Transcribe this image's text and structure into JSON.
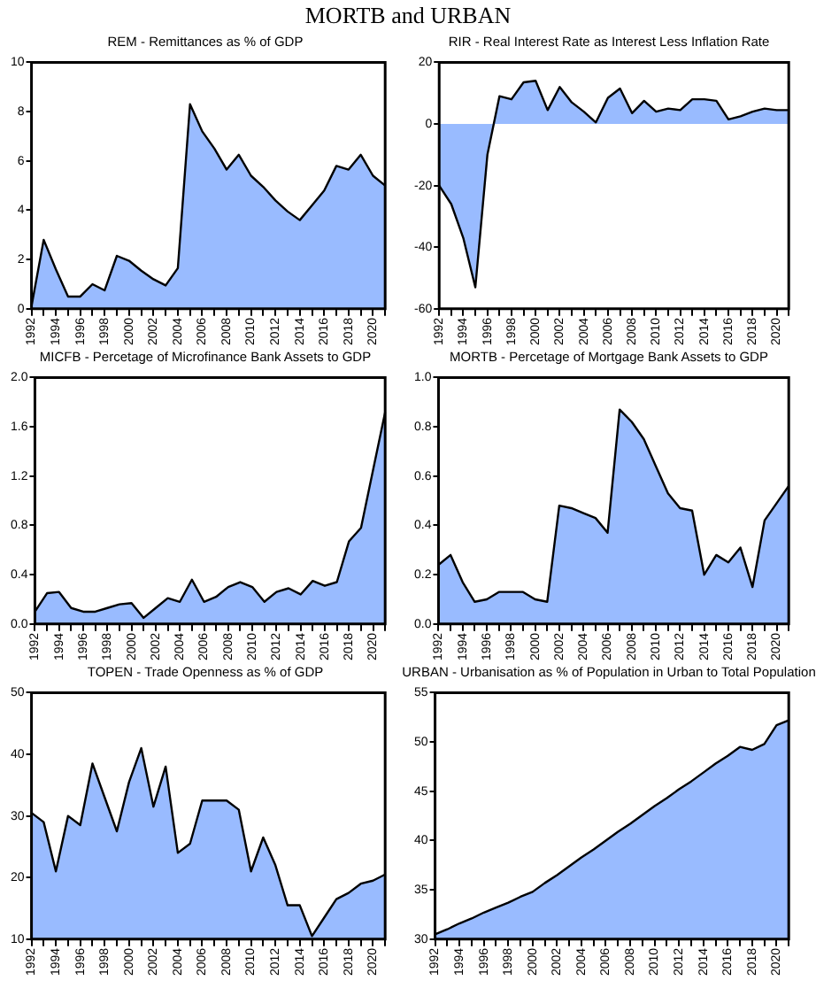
{
  "chart_data": [
    {
      "type": "area",
      "title": "REM - Remittances as % of GDP",
      "annotations": [
        "MORTB and URBAN"
      ],
      "categories": [
        "1992",
        null,
        "1994",
        null,
        "1996",
        null,
        "1998",
        null,
        "2000",
        null,
        "2002",
        null,
        "2004",
        null,
        "2006",
        null,
        "2008",
        null,
        "2010",
        null,
        "2012",
        null,
        "2014",
        null,
        "2016",
        null,
        "2018",
        null,
        "2020",
        null
      ],
      "series": [
        {
          "color": "#99bbff",
          "values": [
            0.1,
            2.8,
            1.6,
            0.5,
            0.5,
            1.0,
            0.75,
            2.15,
            1.95,
            1.55,
            1.2,
            0.95,
            1.65,
            8.3,
            7.2,
            6.5,
            5.65,
            6.25,
            5.4,
            4.95,
            4.4,
            3.95,
            3.6,
            4.2,
            4.8,
            5.8,
            5.65,
            6.25,
            5.4,
            5.0
          ]
        }
      ],
      "ylim": [
        0,
        10
      ],
      "yticks": [
        0,
        2,
        4,
        6,
        8,
        10
      ],
      "grid": false,
      "legend": false
    },
    {
      "type": "area",
      "title": "RIR - Real Interest Rate as Interest Less Inflation Rate",
      "categories": [
        "1992",
        null,
        "1994",
        null,
        "1996",
        null,
        "1998",
        null,
        "2000",
        null,
        "2002",
        null,
        "2004",
        null,
        "2006",
        null,
        "2008",
        null,
        "2010",
        null,
        "2012",
        null,
        "2014",
        null,
        "2016",
        null,
        "2018",
        null,
        "2020",
        null
      ],
      "series": [
        {
          "color": "#99bbff",
          "values": [
            -20,
            -26,
            -37,
            -53,
            -10,
            9,
            8,
            13.5,
            14,
            4.5,
            12,
            7,
            4,
            0.5,
            8.5,
            11.5,
            3.5,
            7.5,
            4,
            5,
            4.5,
            8,
            8,
            7.5,
            1.5,
            2.5,
            4,
            5,
            4.5,
            4.5
          ]
        }
      ],
      "ylim": [
        -60,
        20
      ],
      "yticks": [
        -60,
        -40,
        -20,
        0,
        20
      ],
      "grid": false,
      "legend": false
    },
    {
      "type": "area",
      "title": "MICFB - Percetage of Microfinance Bank Assets to GDP",
      "categories": [
        "1992",
        null,
        "1994",
        null,
        "1996",
        null,
        "1998",
        null,
        "2000",
        null,
        "2002",
        null,
        "2004",
        null,
        "2006",
        null,
        "2008",
        null,
        "2010",
        null,
        "2012",
        null,
        "2014",
        null,
        "2016",
        null,
        "2018",
        null,
        "2020",
        null
      ],
      "series": [
        {
          "color": "#99bbff",
          "values": [
            0.1,
            0.25,
            0.26,
            0.13,
            0.1,
            0.1,
            0.13,
            0.16,
            0.17,
            0.05,
            0.13,
            0.21,
            0.18,
            0.36,
            0.18,
            0.22,
            0.3,
            0.34,
            0.3,
            0.18,
            0.26,
            0.29,
            0.24,
            0.35,
            0.31,
            0.34,
            0.67,
            0.78,
            1.25,
            1.72
          ]
        }
      ],
      "ylim": [
        0,
        2
      ],
      "yticks": [
        {
          "value": 0,
          "label": "0.0"
        },
        0.4,
        0.8,
        1.2,
        1.6,
        {
          "value": 2,
          "label": "2.0"
        }
      ],
      "grid": false,
      "legend": false
    },
    {
      "type": "area",
      "title": "MORTB -  Percetage of Mortgage Bank Assets to GDP",
      "categories": [
        "1992",
        null,
        "1994",
        null,
        "1996",
        null,
        "1998",
        null,
        "2000",
        null,
        "2002",
        null,
        "2004",
        null,
        "2006",
        null,
        "2008",
        null,
        "2010",
        null,
        "2012",
        null,
        "2014",
        null,
        "2016",
        null,
        "2018",
        null,
        "2020",
        null
      ],
      "series": [
        {
          "color": "#99bbff",
          "values": [
            0.24,
            0.28,
            0.17,
            0.09,
            0.1,
            0.13,
            0.13,
            0.13,
            0.1,
            0.09,
            0.48,
            0.47,
            0.45,
            0.43,
            0.37,
            0.87,
            0.82,
            0.75,
            0.64,
            0.53,
            0.47,
            0.46,
            0.2,
            0.28,
            0.25,
            0.31,
            0.15,
            0.42,
            0.49,
            0.56
          ]
        }
      ],
      "ylim": [
        0,
        1
      ],
      "yticks": [
        {
          "value": 0,
          "label": "0.0"
        },
        0.2,
        0.4,
        0.6,
        0.8,
        {
          "value": 1,
          "label": "1.0"
        }
      ],
      "grid": false,
      "legend": false
    },
    {
      "type": "area",
      "title": "TOPEN - Trade Openness as % of GDP",
      "categories": [
        "1992",
        null,
        "1994",
        null,
        "1996",
        null,
        "1998",
        null,
        "2000",
        null,
        "2002",
        null,
        "2004",
        null,
        "2006",
        null,
        "2008",
        null,
        "2010",
        null,
        "2012",
        null,
        "2014",
        null,
        "2016",
        null,
        "2018",
        null,
        "2020",
        null
      ],
      "series": [
        {
          "color": "#99bbff",
          "values": [
            30.5,
            29,
            21,
            30,
            28.5,
            38.5,
            33,
            27.5,
            35.5,
            41,
            31.5,
            38,
            24,
            25.5,
            32.5,
            32.5,
            32.5,
            31,
            21,
            26.5,
            22,
            15.5,
            15.5,
            10.5,
            13.5,
            16.5,
            17.5,
            19,
            19.5,
            20.5
          ]
        }
      ],
      "ylim": [
        10,
        50
      ],
      "yticks": [
        10,
        20,
        30,
        40,
        50
      ],
      "grid": false,
      "legend": false
    },
    {
      "type": "area",
      "title": "URBAN - Urbanisation as % of Population in Urban to Total Population",
      "categories": [
        "1992",
        null,
        "1994",
        null,
        "1996",
        null,
        "1998",
        null,
        "2000",
        null,
        "2002",
        null,
        "2004",
        null,
        "2006",
        null,
        "2008",
        null,
        "2010",
        null,
        "2012",
        null,
        "2014",
        null,
        "2016",
        null,
        "2018",
        null,
        "2020",
        null
      ],
      "series": [
        {
          "color": "#99bbff",
          "values": [
            30.5,
            31.0,
            31.6,
            32.1,
            32.7,
            33.2,
            33.7,
            34.3,
            34.8,
            35.7,
            36.5,
            37.4,
            38.3,
            39.1,
            40.0,
            40.9,
            41.7,
            42.6,
            43.5,
            44.3,
            45.2,
            46.0,
            46.9,
            47.8,
            48.6,
            49.5,
            49.2,
            49.8,
            51.7,
            52.2
          ]
        }
      ],
      "ylim": [
        30,
        55
      ],
      "yticks": [
        30,
        35,
        40,
        45,
        50,
        55
      ],
      "grid": false,
      "legend": false
    }
  ]
}
